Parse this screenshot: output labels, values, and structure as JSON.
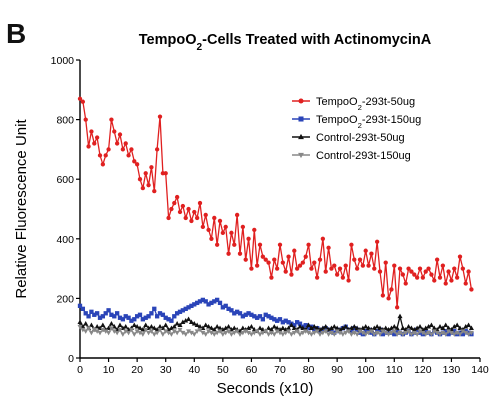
{
  "panel_label": "B",
  "chart_data": {
    "type": "line",
    "title": {
      "pre": "TempoO",
      "sub": "2",
      "post": "-Cells Treated with ActinomycinA"
    },
    "xlabel": "Seconds (x10)",
    "ylabel": "Relative Fluorescence Unit",
    "xlim": [
      0,
      140
    ],
    "ylim": [
      0,
      1000
    ],
    "xticks": [
      0,
      10,
      20,
      30,
      40,
      50,
      60,
      70,
      80,
      90,
      100,
      110,
      120,
      130,
      140
    ],
    "yticks": [
      0,
      200,
      400,
      600,
      800,
      1000
    ],
    "grid": false,
    "legend_position": "top-right",
    "series": [
      {
        "name": "TempoO2-293t-50ug",
        "legend": {
          "pre": "TempoO",
          "sub": "2",
          "post": "-293t-50ug"
        },
        "color": "#e02020",
        "marker": "circle",
        "x": [
          0,
          1,
          2,
          3,
          4,
          5,
          6,
          7,
          8,
          9,
          10,
          11,
          12,
          13,
          14,
          15,
          16,
          17,
          18,
          19,
          20,
          21,
          22,
          23,
          24,
          25,
          26,
          27,
          28,
          29,
          30,
          31,
          32,
          33,
          34,
          35,
          36,
          37,
          38,
          39,
          40,
          41,
          42,
          43,
          44,
          45,
          46,
          47,
          48,
          49,
          50,
          51,
          52,
          53,
          54,
          55,
          56,
          57,
          58,
          59,
          60,
          61,
          62,
          63,
          64,
          65,
          66,
          67,
          68,
          69,
          70,
          71,
          72,
          73,
          74,
          75,
          76,
          77,
          78,
          79,
          80,
          81,
          82,
          83,
          84,
          85,
          86,
          87,
          88,
          89,
          90,
          91,
          92,
          93,
          94,
          95,
          96,
          97,
          98,
          99,
          100,
          101,
          102,
          103,
          104,
          105,
          106,
          107,
          108,
          109,
          110,
          111,
          112,
          113,
          114,
          115,
          116,
          117,
          118,
          119,
          120,
          121,
          122,
          123,
          124,
          125,
          126,
          127,
          128,
          129,
          130,
          131,
          132,
          133,
          134,
          135,
          136,
          137
        ],
        "values": [
          870,
          860,
          800,
          710,
          760,
          720,
          740,
          680,
          650,
          680,
          700,
          800,
          760,
          720,
          750,
          700,
          720,
          680,
          700,
          660,
          650,
          600,
          570,
          620,
          580,
          640,
          560,
          700,
          810,
          620,
          620,
          470,
          500,
          520,
          540,
          490,
          510,
          470,
          500,
          460,
          490,
          470,
          520,
          440,
          480,
          430,
          400,
          470,
          380,
          460,
          420,
          440,
          350,
          420,
          380,
          480,
          350,
          440,
          330,
          400,
          300,
          430,
          310,
          380,
          340,
          330,
          320,
          270,
          330,
          300,
          380,
          320,
          290,
          340,
          280,
          360,
          300,
          310,
          320,
          340,
          380,
          300,
          320,
          270,
          330,
          400,
          290,
          370,
          300,
          310,
          280,
          300,
          270,
          310,
          260,
          380,
          330,
          300,
          330,
          310,
          360,
          310,
          350,
          300,
          390,
          290,
          210,
          320,
          200,
          230,
          310,
          170,
          300,
          280,
          250,
          300,
          290,
          280,
          270,
          300,
          270,
          290,
          300,
          280,
          260,
          330,
          270,
          310,
          250,
          290,
          260,
          300,
          270,
          340,
          300,
          250,
          290,
          230
        ]
      },
      {
        "name": "TempoO2-293t-150ug",
        "legend": {
          "pre": "TempoO",
          "sub": "2",
          "post": "-293t-150ug"
        },
        "color": "#2a44b8",
        "marker": "square",
        "x": [
          0,
          1,
          2,
          3,
          4,
          5,
          6,
          7,
          8,
          9,
          10,
          11,
          12,
          13,
          14,
          15,
          16,
          17,
          18,
          19,
          20,
          21,
          22,
          23,
          24,
          25,
          26,
          27,
          28,
          29,
          30,
          31,
          32,
          33,
          34,
          35,
          36,
          37,
          38,
          39,
          40,
          41,
          42,
          43,
          44,
          45,
          46,
          47,
          48,
          49,
          50,
          51,
          52,
          53,
          54,
          55,
          56,
          57,
          58,
          59,
          60,
          61,
          62,
          63,
          64,
          65,
          66,
          67,
          68,
          69,
          70,
          71,
          72,
          73,
          74,
          75,
          76,
          77,
          78,
          79,
          80,
          81,
          82,
          83,
          84,
          85,
          86,
          87,
          88,
          89,
          90,
          91,
          92,
          93,
          94,
          95,
          96,
          97,
          98,
          99,
          100,
          101,
          102,
          103,
          104,
          105,
          106,
          107,
          108,
          109,
          110,
          111,
          112,
          113,
          114,
          115,
          116,
          117,
          118,
          119,
          120,
          121,
          122,
          123,
          124,
          125,
          126,
          127,
          128,
          129,
          130,
          131,
          132,
          133,
          134,
          135,
          136,
          137
        ],
        "values": [
          175,
          165,
          150,
          140,
          155,
          145,
          150,
          135,
          140,
          150,
          160,
          145,
          140,
          150,
          135,
          130,
          140,
          135,
          125,
          130,
          140,
          145,
          130,
          135,
          140,
          150,
          165,
          140,
          150,
          145,
          135,
          130,
          125,
          140,
          150,
          155,
          160,
          165,
          170,
          175,
          180,
          185,
          190,
          195,
          190,
          180,
          185,
          190,
          195,
          185,
          170,
          175,
          165,
          160,
          150,
          155,
          150,
          140,
          145,
          150,
          145,
          140,
          135,
          140,
          130,
          145,
          140,
          135,
          130,
          125,
          130,
          120,
          125,
          120,
          115,
          110,
          120,
          115,
          105,
          110,
          100,
          105,
          95,
          100,
          90,
          95,
          100,
          95,
          90,
          85,
          95,
          90,
          100,
          105,
          95,
          90,
          100,
          95,
          85,
          80,
          90,
          95,
          85,
          80,
          90,
          95,
          80,
          85,
          90,
          85,
          80,
          90,
          85,
          80,
          85,
          90,
          80,
          85,
          95,
          85,
          80,
          90,
          85,
          80,
          90,
          85,
          80,
          85,
          90,
          80,
          85,
          90,
          80,
          85,
          80,
          90,
          85,
          80
        ]
      },
      {
        "name": "Control-293t-50ug",
        "legend": {
          "pre": "Control-293t-50ug",
          "sub": "",
          "post": ""
        },
        "color": "#111111",
        "marker": "triangle",
        "x": [
          0,
          1,
          2,
          3,
          4,
          5,
          6,
          7,
          8,
          9,
          10,
          11,
          12,
          13,
          14,
          15,
          16,
          17,
          18,
          19,
          20,
          21,
          22,
          23,
          24,
          25,
          26,
          27,
          28,
          29,
          30,
          31,
          32,
          33,
          34,
          35,
          36,
          37,
          38,
          39,
          40,
          41,
          42,
          43,
          44,
          45,
          46,
          47,
          48,
          49,
          50,
          51,
          52,
          53,
          54,
          55,
          56,
          57,
          58,
          59,
          60,
          61,
          62,
          63,
          64,
          65,
          66,
          67,
          68,
          69,
          70,
          71,
          72,
          73,
          74,
          75,
          76,
          77,
          78,
          79,
          80,
          81,
          82,
          83,
          84,
          85,
          86,
          87,
          88,
          89,
          90,
          91,
          92,
          93,
          94,
          95,
          96,
          97,
          98,
          99,
          100,
          101,
          102,
          103,
          104,
          105,
          106,
          107,
          108,
          109,
          110,
          111,
          112,
          113,
          114,
          115,
          116,
          117,
          118,
          119,
          120,
          121,
          122,
          123,
          124,
          125,
          126,
          127,
          128,
          129,
          130,
          131,
          132,
          133,
          134,
          135,
          136,
          137
        ],
        "values": [
          120,
          105,
          115,
          100,
          110,
          95,
          105,
          100,
          110,
          95,
          100,
          115,
          105,
          95,
          110,
          100,
          105,
          95,
          100,
          110,
          105,
          100,
          95,
          110,
          100,
          105,
          100,
          95,
          105,
          100,
          110,
          95,
          100,
          105,
          115,
          110,
          120,
          125,
          130,
          120,
          115,
          110,
          105,
          100,
          110,
          105,
          100,
          95,
          105,
          100,
          95,
          100,
          105,
          95,
          100,
          95,
          90,
          100,
          95,
          100,
          105,
          95,
          90,
          100,
          95,
          90,
          100,
          95,
          105,
          100,
          95,
          100,
          95,
          100,
          110,
          100,
          95,
          105,
          100,
          95,
          110,
          100,
          105,
          100,
          95,
          100,
          105,
          95,
          100,
          105,
          100,
          95,
          100,
          105,
          95,
          100,
          105,
          100,
          95,
          100,
          105,
          100,
          95,
          100,
          105,
          100,
          95,
          100,
          95,
          100,
          105,
          100,
          140,
          100,
          95,
          105,
          100,
          95,
          100,
          105,
          95,
          100,
          105,
          110,
          100,
          95,
          105,
          100,
          110,
          100,
          95,
          105,
          110,
          100,
          95,
          105,
          110,
          100
        ]
      },
      {
        "name": "Control-293t-150ug",
        "legend": {
          "pre": "Control-293t-150ug",
          "sub": "",
          "post": ""
        },
        "color": "#888888",
        "marker": "triangle-down",
        "x": [
          0,
          1,
          2,
          3,
          4,
          5,
          6,
          7,
          8,
          9,
          10,
          11,
          12,
          13,
          14,
          15,
          16,
          17,
          18,
          19,
          20,
          21,
          22,
          23,
          24,
          25,
          26,
          27,
          28,
          29,
          30,
          31,
          32,
          33,
          34,
          35,
          36,
          37,
          38,
          39,
          40,
          41,
          42,
          43,
          44,
          45,
          46,
          47,
          48,
          49,
          50,
          51,
          52,
          53,
          54,
          55,
          56,
          57,
          58,
          59,
          60,
          61,
          62,
          63,
          64,
          65,
          66,
          67,
          68,
          69,
          70,
          71,
          72,
          73,
          74,
          75,
          76,
          77,
          78,
          79,
          80,
          81,
          82,
          83,
          84,
          85,
          86,
          87,
          88,
          89,
          90,
          91,
          92,
          93,
          94,
          95,
          96,
          97,
          98,
          99,
          100,
          101,
          102,
          103,
          104,
          105,
          106,
          107,
          108,
          109,
          110,
          111,
          112,
          113,
          114,
          115,
          116,
          117,
          118,
          119,
          120,
          121,
          122,
          123,
          124,
          125,
          126,
          127,
          128,
          129,
          130,
          131,
          132,
          133,
          134,
          135,
          136,
          137
        ],
        "values": [
          105,
          95,
          90,
          100,
          85,
          95,
          90,
          85,
          95,
          90,
          85,
          100,
          90,
          85,
          95,
          80,
          90,
          85,
          95,
          80,
          90,
          85,
          80,
          95,
          85,
          90,
          80,
          85,
          95,
          80,
          90,
          85,
          80,
          90,
          85,
          95,
          85,
          80,
          90,
          85,
          80,
          90,
          95,
          85,
          80,
          90,
          85,
          80,
          85,
          90,
          80,
          85,
          90,
          80,
          85,
          90,
          80,
          85,
          90,
          85,
          80,
          85,
          90,
          80,
          85,
          90,
          80,
          85,
          80,
          90,
          85,
          80,
          85,
          90,
          80,
          85,
          90,
          80,
          85,
          90,
          85,
          80,
          85,
          90,
          80,
          85,
          90,
          80,
          85,
          80,
          90,
          85,
          80,
          85,
          90,
          80,
          85,
          80,
          90,
          85,
          80,
          85,
          90,
          80,
          85,
          80,
          90,
          85,
          80,
          85,
          90,
          80,
          85,
          80,
          85,
          90,
          80,
          85,
          80,
          90,
          85,
          80,
          85,
          80,
          90,
          85,
          80,
          85,
          80,
          90,
          85,
          80,
          85,
          80,
          90,
          85,
          80,
          85
        ]
      }
    ]
  }
}
